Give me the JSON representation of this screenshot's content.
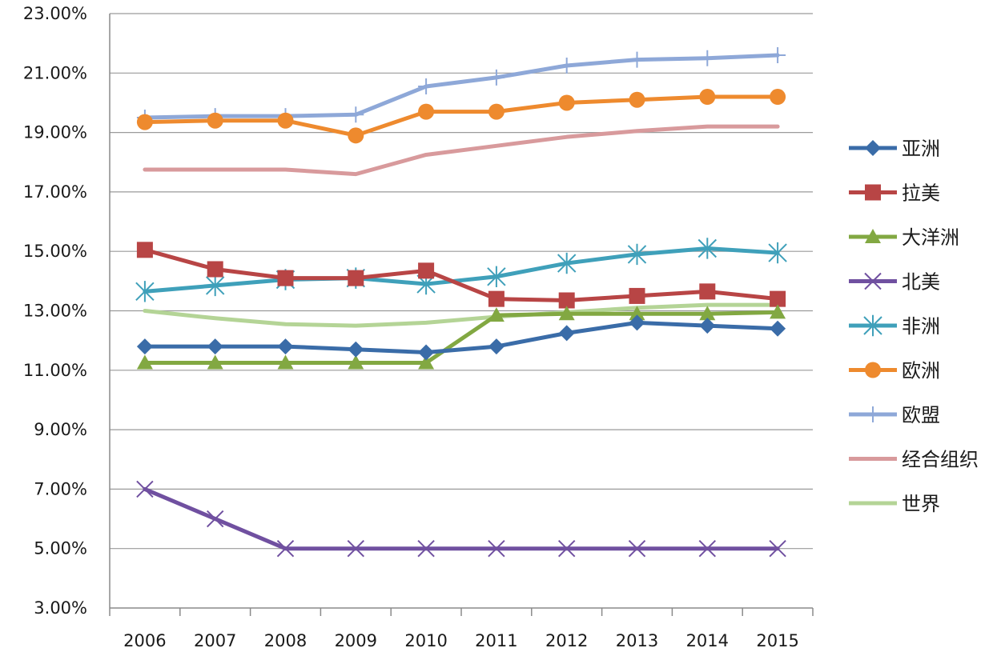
{
  "chart_data": {
    "type": "line",
    "title": "",
    "xlabel": "",
    "ylabel": "",
    "x": [
      "2006",
      "2007",
      "2008",
      "2009",
      "2010",
      "2011",
      "2012",
      "2013",
      "2014",
      "2015"
    ],
    "ylim": [
      3,
      23
    ],
    "yticks": [
      "3.00%",
      "5.00%",
      "7.00%",
      "9.00%",
      "11.00%",
      "13.00%",
      "15.00%",
      "17.00%",
      "19.00%",
      "21.00%",
      "23.00%"
    ],
    "grid": true,
    "legend_position": "right",
    "series": [
      {
        "name": "亚洲",
        "color": "#3A6CA8",
        "marker": "diamond",
        "values": [
          11.8,
          11.8,
          11.8,
          11.7,
          11.6,
          11.8,
          12.25,
          12.6,
          12.5,
          12.4
        ]
      },
      {
        "name": "拉美",
        "color": "#B84545",
        "marker": "square",
        "values": [
          15.05,
          14.4,
          14.1,
          14.1,
          14.35,
          13.4,
          13.35,
          13.5,
          13.65,
          13.4
        ]
      },
      {
        "name": "大洋洲",
        "color": "#82A842",
        "marker": "triangle",
        "values": [
          11.25,
          11.25,
          11.25,
          11.25,
          11.25,
          12.85,
          12.9,
          12.9,
          12.9,
          12.95
        ]
      },
      {
        "name": "北美",
        "color": "#7050A0",
        "marker": "x",
        "values": [
          7.0,
          6.0,
          5.0,
          5.0,
          5.0,
          5.0,
          5.0,
          5.0,
          5.0,
          5.0
        ]
      },
      {
        "name": "非洲",
        "color": "#3FA0BA",
        "marker": "star",
        "values": [
          13.65,
          13.85,
          14.05,
          14.1,
          13.9,
          14.15,
          14.6,
          14.9,
          15.1,
          14.95
        ]
      },
      {
        "name": "欧洲",
        "color": "#EE8A2E",
        "marker": "circle",
        "values": [
          19.35,
          19.4,
          19.4,
          18.9,
          19.7,
          19.7,
          20.0,
          20.1,
          20.2,
          20.2
        ]
      },
      {
        "name": "欧盟",
        "color": "#8EA8D8",
        "marker": "plus",
        "values": [
          19.5,
          19.55,
          19.55,
          19.6,
          20.55,
          20.85,
          21.25,
          21.45,
          21.5,
          21.6
        ]
      },
      {
        "name": "经合组织",
        "color": "#D89A9C",
        "marker": "none",
        "values": [
          17.75,
          17.75,
          17.75,
          17.6,
          18.25,
          18.55,
          18.85,
          19.05,
          19.2,
          19.2
        ]
      },
      {
        "name": "世界",
        "color": "#B4D496",
        "marker": "none",
        "values": [
          13.0,
          12.75,
          12.55,
          12.5,
          12.6,
          12.8,
          12.95,
          13.1,
          13.2,
          13.2
        ]
      }
    ]
  }
}
